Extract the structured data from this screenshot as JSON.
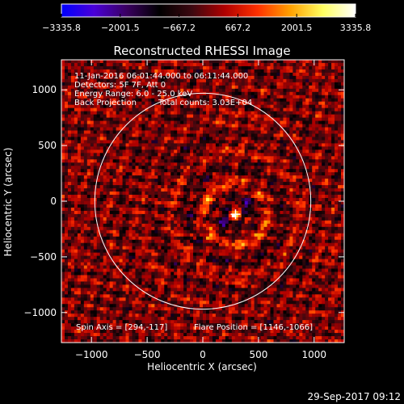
{
  "chart_data": {
    "type": "heatmap",
    "title": "Reconstructed RHESSI Image",
    "xlabel": "Heliocentric X (arcsec)",
    "ylabel": "Heliocentric Y (arcsec)",
    "xlim": [
      -1270,
      1270
    ],
    "ylim": [
      -1270,
      1270
    ],
    "xticks": [
      -1000,
      -500,
      0,
      500,
      1000
    ],
    "yticks": [
      -1000,
      -500,
      0,
      500,
      1000
    ],
    "xtick_labels": [
      "−1000",
      "−500",
      "0",
      "500",
      "1000"
    ],
    "ytick_labels": [
      "−1000",
      "−500",
      "0",
      "500",
      "1000"
    ],
    "colorbar": {
      "range": [
        -3335.8,
        3335.8
      ],
      "ticks": [
        -3335.8,
        -2001.5,
        -667.2,
        667.2,
        2001.5,
        3335.8
      ],
      "tick_labels": [
        "−3335.8",
        "−2001.5",
        "−667.2",
        "667.2",
        "2001.5",
        "3335.8"
      ],
      "colormap": [
        "#0000ff",
        "#4a00d8",
        "#3a0060",
        "#000000",
        "#3c0810",
        "#b00000",
        "#ff3000",
        "#ffa000",
        "#ffff60",
        "#ffffff"
      ]
    },
    "solar_disk_radius": 970,
    "marker": {
      "x": 294,
      "y": -117
    },
    "annotations": {
      "time_range": "11-Jan-2016 06:01:44.000 to 06:11:44.000",
      "detectors": "Detectors: 5F 7F, Att 0",
      "energy": "Energy Range: 6.0 - 25.0 keV",
      "method": "Back Projection",
      "counts": "Total counts: 3.03E+04",
      "spin_axis": "Spin Axis = [294,-117]",
      "flare_position": "Flare Position = [1146,-1066]"
    },
    "grid": false
  },
  "footer": {
    "timestamp": "29-Sep-2017 09:12"
  }
}
